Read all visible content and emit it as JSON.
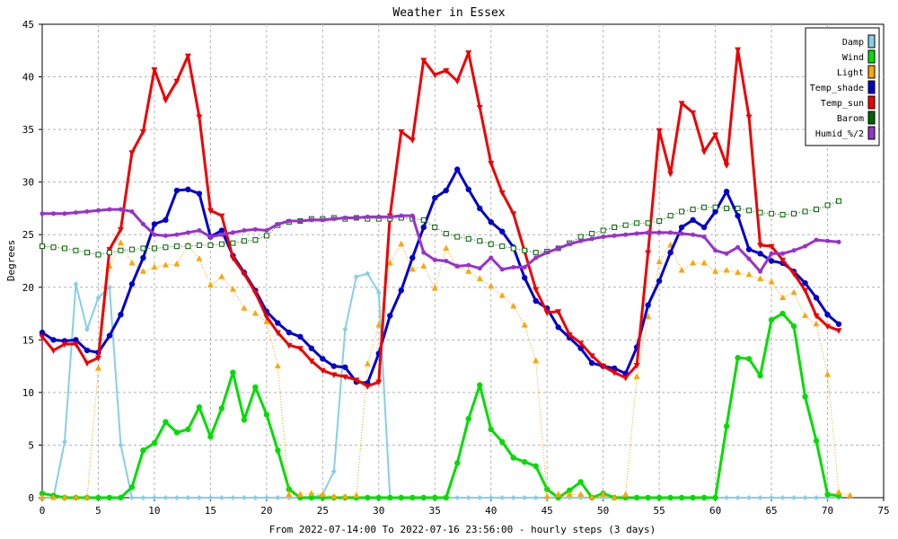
{
  "chart_data": {
    "type": "line",
    "title": "Weather in Essex",
    "xlabel": "From 2022-07-14:00 To 2022-07-16 23:56:00 - hourly steps (3 days)",
    "ylabel": "Degrees",
    "xlim": [
      0,
      75
    ],
    "ylim": [
      0,
      45
    ],
    "x_ticks": [
      "0",
      "5",
      "10",
      "15",
      "20",
      "25",
      "30",
      "35",
      "40",
      "45",
      "50",
      "55",
      "60",
      "65",
      "70",
      "75"
    ],
    "y_ticks": [
      "0",
      "5",
      "10",
      "15",
      "20",
      "25",
      "30",
      "35",
      "40",
      "45"
    ],
    "grid": true,
    "legend_position": "top-right",
    "series": [
      {
        "name": "Damp",
        "color": "#87ceeb",
        "marker": "diamond",
        "values": [
          0,
          0,
          5.3,
          20.3,
          16,
          19,
          20,
          5,
          0,
          0,
          0,
          0,
          0,
          0,
          0,
          0,
          0,
          0,
          0,
          0,
          0,
          0,
          0,
          0,
          0,
          0.3,
          2.5,
          16,
          21,
          21.3,
          19.5,
          0,
          0,
          0,
          0,
          0,
          0,
          0,
          0,
          0,
          0,
          0,
          0,
          0,
          0,
          0,
          0,
          0,
          0,
          0,
          0,
          0,
          0,
          0,
          0,
          0,
          0,
          0,
          0,
          0,
          0,
          0,
          0,
          0,
          0,
          0,
          0,
          0,
          0,
          0,
          0,
          0
        ]
      },
      {
        "name": "Wind",
        "color": "#00dd00",
        "marker": "circle",
        "values": [
          0.4,
          0.2,
          0,
          0,
          0,
          0,
          0,
          0,
          1,
          4.5,
          5.2,
          7.2,
          6.2,
          6.5,
          8.6,
          5.8,
          8.5,
          11.9,
          7.4,
          10.5,
          7.9,
          4.5,
          0.8,
          0,
          0,
          0,
          0,
          0,
          0,
          0,
          0,
          0,
          0,
          0,
          0,
          0,
          0,
          3.3,
          7.5,
          10.7,
          6.5,
          5.3,
          3.8,
          3.4,
          3,
          0.8,
          0,
          0.7,
          1.5,
          0,
          0.4,
          0,
          0,
          0,
          0,
          0,
          0,
          0,
          0,
          0,
          0,
          6.8,
          13.3,
          13.2,
          11.6,
          16.9,
          17.5,
          16.3,
          9.6,
          5.4,
          0.3,
          0.2
        ]
      },
      {
        "name": "Light",
        "color": "#ffa500",
        "marker": "triangle",
        "values": [
          0,
          0,
          0,
          0,
          0,
          12.3,
          22,
          24.2,
          22.3,
          21.5,
          21.9,
          22.1,
          22.2,
          24,
          22.7,
          20.2,
          21,
          19.8,
          18,
          17.5,
          16.7,
          12.5,
          0.3,
          0.3,
          0.4,
          0.3,
          0.1,
          0.1,
          0.2,
          12.7,
          16.4,
          22.3,
          24.1,
          21.7,
          22,
          19.9,
          23.7,
          22,
          21.5,
          20.8,
          20.1,
          19.2,
          18.2,
          16.4,
          13,
          0.1,
          0.3,
          0.3,
          0.3,
          0,
          0.3,
          0,
          0.3,
          11.5,
          17.2,
          22.4,
          24,
          21.6,
          22.3,
          22.3,
          21.5,
          21.6,
          21.4,
          21.2,
          20.8,
          20.5,
          19,
          19.5,
          17.3,
          16.5,
          11.7,
          0.5,
          0.2
        ]
      },
      {
        "name": "Temp_shade",
        "color": "#0000cc",
        "marker": "circle",
        "values": [
          15.7,
          15,
          14.9,
          15,
          14,
          13.8,
          15.4,
          17.4,
          20.3,
          22.8,
          26,
          26.4,
          29.2,
          29.3,
          28.9,
          24.8,
          25.4,
          23,
          21.4,
          19.7,
          17.7,
          16.6,
          15.7,
          15.3,
          14.2,
          13.2,
          12.5,
          12.4,
          11,
          10.9,
          13.7,
          17.3,
          19.7,
          22.8,
          25.7,
          28.5,
          29.2,
          31.2,
          29.3,
          27.5,
          26.2,
          25.3,
          23.8,
          20.9,
          18.7,
          18,
          16.2,
          15.2,
          14.2,
          12.8,
          12.5,
          12.3,
          11.8,
          14.3,
          18.3,
          20.6,
          23.3,
          25.7,
          26.4,
          25.7,
          27.2,
          29.1,
          26.8,
          23.6,
          23.2,
          22.5,
          22.3,
          21.5,
          20.4,
          19,
          17.4,
          16.5
        ]
      },
      {
        "name": "Temp_sun",
        "color": "#ee0000",
        "marker": "triangle-down",
        "values": [
          15.3,
          14,
          14.6,
          14.6,
          12.8,
          13.3,
          23.6,
          25.5,
          32.8,
          34.8,
          40.7,
          37.8,
          39.6,
          42,
          36.2,
          27.3,
          26.8,
          22.8,
          21.3,
          19.5,
          17.2,
          15.7,
          14.5,
          14.2,
          13,
          12.1,
          11.7,
          11.5,
          11.2,
          10.6,
          11,
          26.8,
          34.8,
          34,
          41.6,
          40.2,
          40.6,
          39.6,
          42.3,
          37.1,
          31.8,
          29,
          27,
          23.4,
          19.8,
          17.6,
          17.7,
          15.5,
          14.7,
          13.5,
          12.5,
          11.9,
          11.4,
          12.6,
          23.3,
          34.9,
          30.8,
          37.5,
          36.6,
          32.9,
          34.5,
          31.6,
          42.6,
          36.2,
          24,
          23.9,
          22.6,
          21.3,
          19.7,
          17.3,
          16.3,
          15.9
        ]
      },
      {
        "name": "Barom",
        "color": "#006400",
        "marker": "square-open",
        "values": [
          23.9,
          23.8,
          23.7,
          23.5,
          23.3,
          23.1,
          23.3,
          23.5,
          23.6,
          23.7,
          23.7,
          23.8,
          23.9,
          23.9,
          24,
          24,
          24.1,
          24.2,
          24.4,
          24.5,
          24.9,
          25.9,
          26.2,
          26.3,
          26.5,
          26.5,
          26.6,
          26.5,
          26.6,
          26.5,
          26.5,
          26.5,
          26.6,
          26.5,
          26.4,
          25.7,
          25.1,
          24.8,
          24.6,
          24.4,
          24.1,
          23.9,
          23.7,
          23.5,
          23.3,
          23.4,
          23.7,
          24.2,
          24.8,
          25.1,
          25.4,
          25.7,
          25.9,
          26.1,
          26.1,
          26.3,
          26.8,
          27.2,
          27.4,
          27.6,
          27.6,
          27.5,
          27.5,
          27.3,
          27.1,
          27,
          26.9,
          27,
          27.2,
          27.4,
          27.8,
          28.2
        ]
      },
      {
        "name": "Humid_%/2",
        "color": "#9932cc",
        "marker": "circle",
        "values": [
          27,
          27,
          27,
          27.1,
          27.2,
          27.3,
          27.4,
          27.4,
          27.2,
          26,
          25,
          24.9,
          25,
          25.2,
          25.4,
          24.8,
          25,
          25.2,
          25.4,
          25.5,
          25.4,
          26,
          26.3,
          26.3,
          26.4,
          26.4,
          26.5,
          26.6,
          26.6,
          26.7,
          26.7,
          26.7,
          26.8,
          26.8,
          23.3,
          22.6,
          22.5,
          22,
          22.1,
          21.8,
          22.8,
          21.7,
          21.9,
          21.9,
          22.8,
          23.3,
          23.7,
          24.1,
          24.4,
          24.6,
          24.8,
          24.9,
          25,
          25.1,
          25.2,
          25.2,
          25.2,
          25.1,
          25,
          24.8,
          23.5,
          23.2,
          23.8,
          22.7,
          21.5,
          23.2,
          23.2,
          23.5,
          23.9,
          24.5,
          24.4,
          24.3
        ]
      }
    ]
  }
}
